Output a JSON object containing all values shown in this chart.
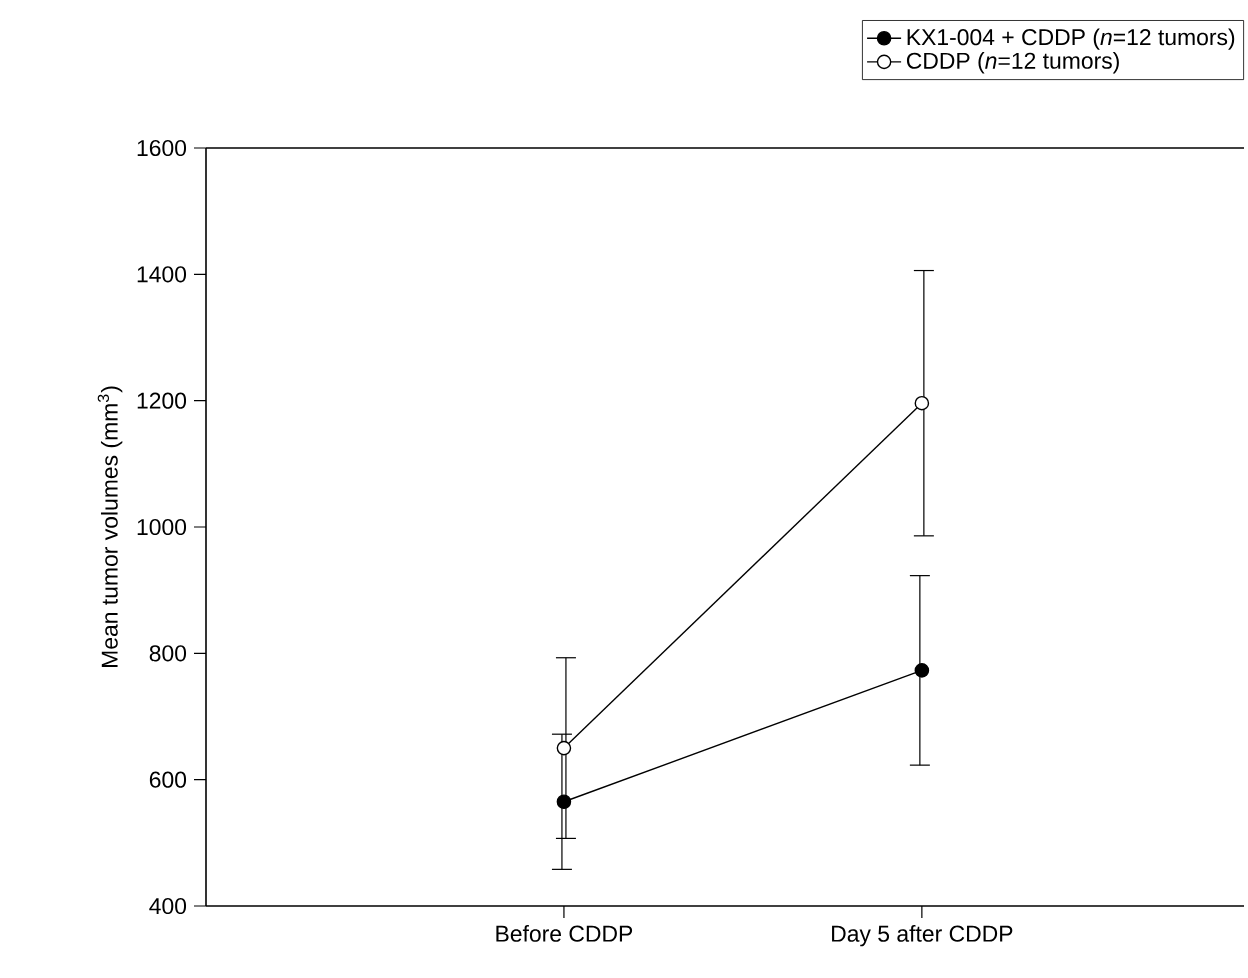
{
  "chart_data": {
    "type": "line",
    "ylabel": "Mean tumor volumes (mm$^{3}$)",
    "categories": [
      "Before CDDP",
      "Day 5 after CDDP"
    ],
    "series": [
      {
        "name": "KX1-004 + CDDP (*n*=12 tumors)",
        "color": "#000000",
        "values": [
          565,
          773
        ],
        "errors": [
          107,
          150
        ]
      },
      {
        "name": "CDDP (*n*=12 tumors)",
        "color": "#000000",
        "values": [
          650,
          1196
        ],
        "errors": [
          143,
          210
        ]
      }
    ],
    "ylim": [
      400,
      1600
    ],
    "yticks": [
      400,
      600,
      800,
      1000,
      1200,
      1400,
      1600
    ],
    "legend": "top right",
    "marker": "circle",
    "line_style": "solid",
    "grid": false
  }
}
